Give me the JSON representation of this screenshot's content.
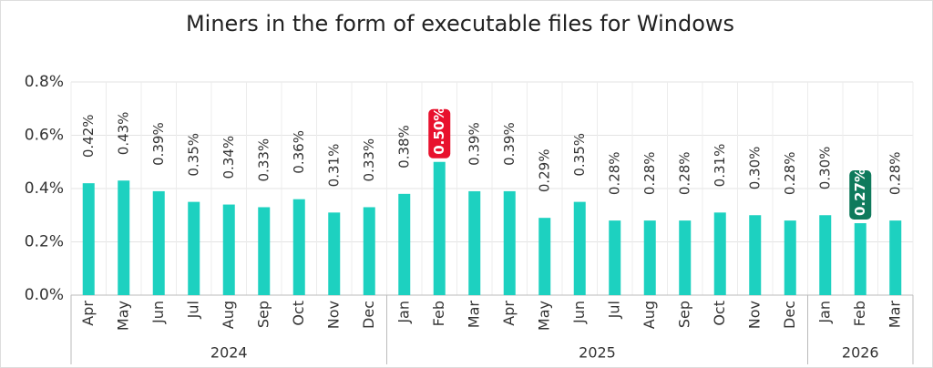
{
  "chart_data": {
    "type": "bar",
    "title": "Miners in the form of executable files for Windows",
    "categories": [
      "Apr",
      "May",
      "Jun",
      "Jul",
      "Aug",
      "Sep",
      "Oct",
      "Nov",
      "Dec",
      "Jan",
      "Feb",
      "Mar",
      "Apr",
      "May",
      "Jun",
      "Jul",
      "Aug",
      "Sep",
      "Oct",
      "Nov",
      "Dec",
      "Jan",
      "Feb",
      "Mar"
    ],
    "x_groups": [
      {
        "label": "2024",
        "size": 9
      },
      {
        "label": "2025",
        "size": 12
      },
      {
        "label": "2026",
        "size": 3
      }
    ],
    "values": [
      0.42,
      0.43,
      0.39,
      0.35,
      0.34,
      0.33,
      0.36,
      0.31,
      0.33,
      0.38,
      0.5,
      0.39,
      0.39,
      0.29,
      0.35,
      0.28,
      0.28,
      0.28,
      0.31,
      0.3,
      0.28,
      0.3,
      0.27,
      0.28
    ],
    "value_labels": [
      "0.42%",
      "0.43%",
      "0.39%",
      "0.35%",
      "0.34%",
      "0.33%",
      "0.36%",
      "0.31%",
      "0.33%",
      "0.38%",
      "0.50%",
      "0.39%",
      "0.39%",
      "0.29%",
      "0.35%",
      "0.28%",
      "0.28%",
      "0.28%",
      "0.31%",
      "0.30%",
      "0.28%",
      "0.30%",
      "0.27%",
      "0.28%"
    ],
    "value_label_backgrounds": [
      null,
      null,
      null,
      null,
      null,
      null,
      null,
      null,
      null,
      null,
      "#e8112d",
      null,
      null,
      null,
      null,
      null,
      null,
      null,
      null,
      null,
      null,
      null,
      "#0f7a5c",
      null
    ],
    "color": "#1dd1c0",
    "ylim": [
      0,
      0.8
    ],
    "yticks": [
      {
        "value": 0,
        "label": "0.0%"
      },
      {
        "value": 0.2,
        "label": "0.2%"
      },
      {
        "value": 0.4,
        "label": "0.4%"
      },
      {
        "value": 0.6,
        "label": "0.6%"
      },
      {
        "value": 0.8,
        "label": "0.8%"
      }
    ],
    "grid": true
  }
}
